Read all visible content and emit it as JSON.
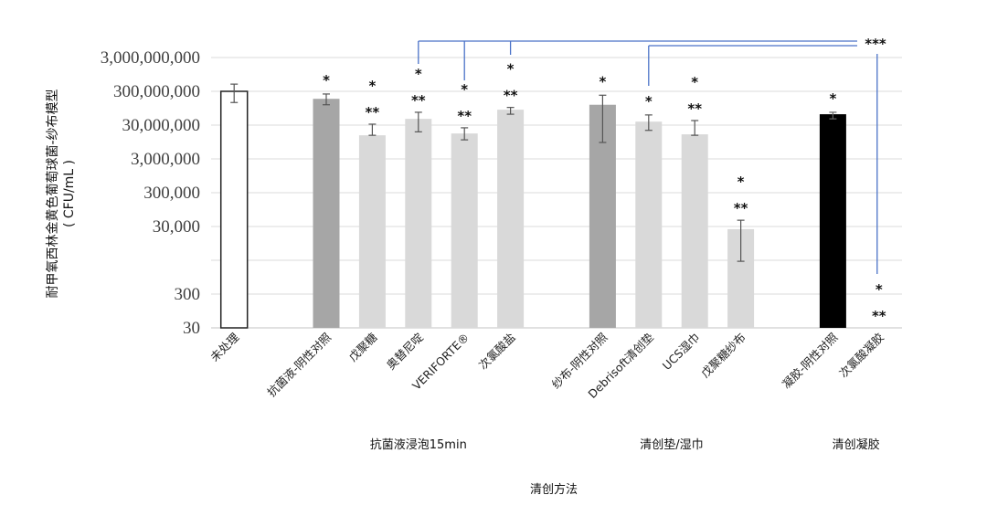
{
  "chart_data": {
    "type": "bar",
    "title": "",
    "ylabel": "耐甲氧西林金黄色葡萄球菌-纱布模型",
    "ylabel_unit": "( CFU/mL )",
    "xlabel": "清创方法",
    "yscale": "log",
    "ylim": [
      30,
      3000000000
    ],
    "grid": true,
    "y_ticks": [
      {
        "value": 3000000000,
        "label": "3,000,000,000"
      },
      {
        "value": 300000000,
        "label": "300,000,000"
      },
      {
        "value": 30000000,
        "label": "30,000,000"
      },
      {
        "value": 3000000,
        "label": "3,000,000"
      },
      {
        "value": 300000,
        "label": "300,000"
      },
      {
        "value": 30000,
        "label": "30,000"
      },
      {
        "value": 300,
        "label": "300"
      },
      {
        "value": 30,
        "label": "30"
      }
    ],
    "groups": [
      {
        "label": "抗菌液浸泡15min"
      },
      {
        "label": "清创垫/湿巾"
      },
      {
        "label": "清创凝胶"
      }
    ],
    "colors": {
      "untreated": "#ffffff",
      "control": "#a6a6a6",
      "treatment": "#d9d9d9",
      "gel_control": "#000000",
      "bracket": "#4a72c8"
    },
    "bars": [
      {
        "category": "未处理",
        "value": 300000000,
        "err": [
          140000000,
          490000000
        ],
        "style": "untreated",
        "marks": []
      },
      {
        "category": "抗菌液-阴性对照",
        "value": 180000000,
        "err": [
          120000000,
          250000000
        ],
        "style": "control",
        "marks": [
          "*"
        ]
      },
      {
        "category": "戊聚糖",
        "value": 15000000,
        "err": [
          15000000,
          32000000
        ],
        "style": "treatment",
        "marks": [
          "*",
          "**"
        ]
      },
      {
        "category": "奥替尼啶",
        "value": 46000000,
        "err": [
          19000000,
          72000000
        ],
        "style": "treatment",
        "marks": [
          "*",
          "**"
        ]
      },
      {
        "category": "VERIFORTE®",
        "value": 17000000,
        "err": [
          11000000,
          25000000
        ],
        "style": "treatment",
        "marks": [
          "*",
          "**"
        ]
      },
      {
        "category": "次氯酸盐",
        "value": 86000000,
        "err": [
          63000000,
          100000000
        ],
        "style": "treatment",
        "marks": [
          "*",
          "**"
        ]
      },
      {
        "category": "纱布-阴性对照",
        "value": 120000000,
        "err": [
          9200000,
          230000000
        ],
        "style": "control",
        "marks": [
          "*"
        ]
      },
      {
        "category": "Debrisoft清创垫",
        "value": 38000000,
        "err": [
          21000000,
          60000000
        ],
        "style": "treatment",
        "marks": [
          "*"
        ]
      },
      {
        "category": "UCS湿巾",
        "value": 16000000,
        "err": [
          15000000,
          41000000
        ],
        "style": "treatment",
        "marks": [
          "*",
          "**"
        ]
      },
      {
        "category": "戊聚糖纱布",
        "value": 25000,
        "err": [
          2800,
          46000
        ],
        "style": "treatment",
        "marks": [
          "*",
          "**"
        ]
      },
      {
        "category": "凝胶-阴性对照",
        "value": 63000000,
        "err": [
          46000000,
          72000000
        ],
        "style": "gel_control",
        "marks": [
          "*"
        ]
      },
      {
        "category": "次氯酸凝胶",
        "value": 30,
        "err": null,
        "style": "treatment",
        "marks": [
          "*",
          "**"
        ]
      }
    ],
    "bracket_label": "***"
  }
}
